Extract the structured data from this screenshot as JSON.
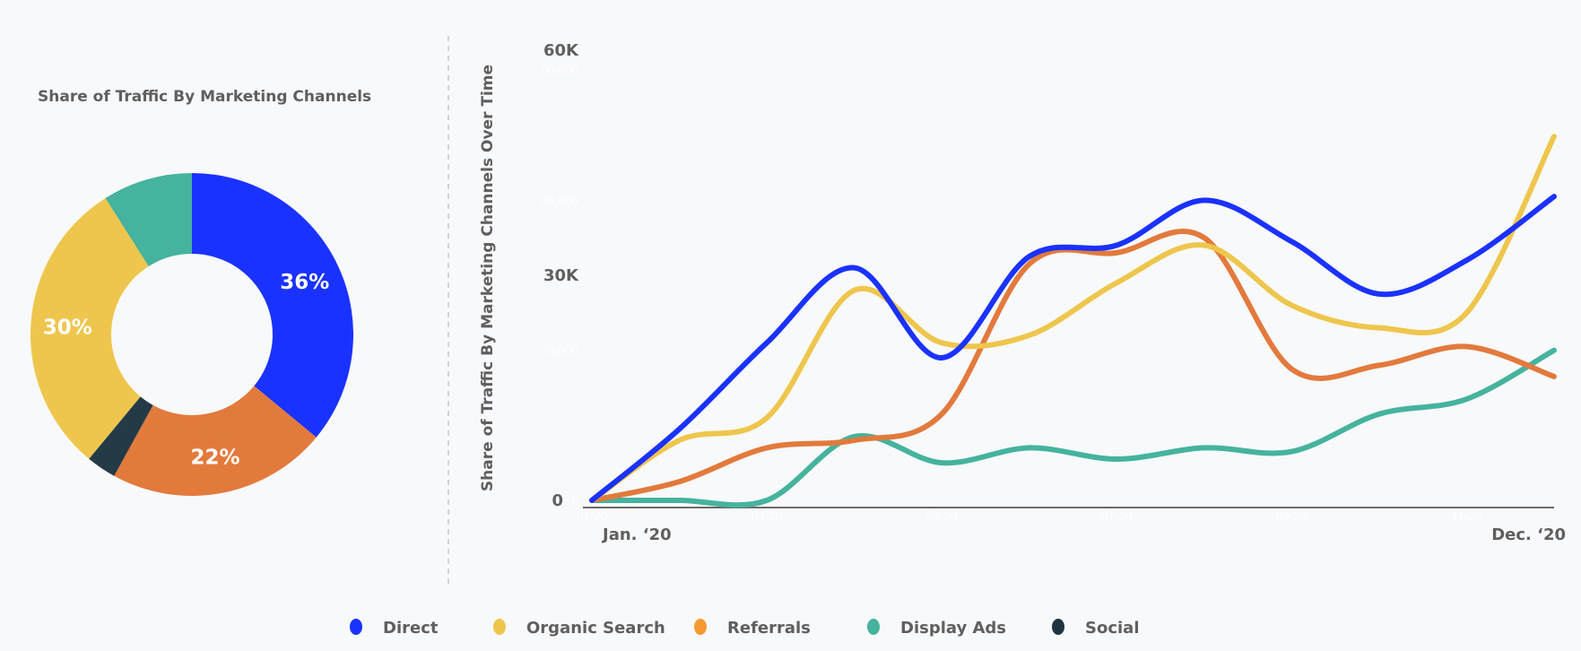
{
  "chart_data": [
    {
      "type": "pie",
      "title": "Share of Traffic By Marketing Channels",
      "donut": true,
      "slices": [
        {
          "name": "Direct",
          "value": 36,
          "label": "36%",
          "color": "#1a32ff"
        },
        {
          "name": "Referrals",
          "value": 22,
          "label": "22%",
          "color": "#e27a3c"
        },
        {
          "name": "Social",
          "value": 3,
          "label": "",
          "color": "#243a47"
        },
        {
          "name": "Organic Search",
          "value": 30,
          "label": "30%",
          "color": "#eec64d"
        },
        {
          "name": "Display Ads",
          "value": 9,
          "label": "",
          "color": "#45b39d"
        }
      ]
    },
    {
      "type": "line",
      "ylabel": "Share of Traffic By Marketing Channels Over Time",
      "ylim": [
        0,
        60000
      ],
      "yticks": [
        {
          "value": 0,
          "label": "0"
        },
        {
          "value": 30000,
          "label": "30K"
        },
        {
          "value": 60000,
          "label": "60K"
        }
      ],
      "faint_yticks": [
        {
          "value": 0,
          "label": "0"
        },
        {
          "value": 20000,
          "label": "20,000"
        },
        {
          "value": 40000,
          "label": "40,000"
        },
        {
          "value": 60000,
          "label": "60,000"
        }
      ],
      "x": [
        "01-20",
        "02-20",
        "03-20",
        "04-20",
        "05-20",
        "06-20",
        "07-20",
        "08-20",
        "09-20",
        "10-20",
        "11-20",
        "12-20"
      ],
      "faint_xticks": [
        "01-20",
        "03-20",
        "05-20",
        "07-20",
        "09-20",
        "11-20"
      ],
      "xlabel_start": "Jan. ‘20",
      "xlabel_end": "Dec. ‘20",
      "grid": false,
      "series": [
        {
          "name": "Direct",
          "color": "#1a32ff",
          "values": [
            0,
            9500,
            21000,
            31000,
            19000,
            32500,
            34000,
            40000,
            34500,
            27500,
            32000,
            40500
          ]
        },
        {
          "name": "Organic Search",
          "color": "#eec64d",
          "values": [
            0,
            8000,
            11000,
            28000,
            21000,
            22000,
            29000,
            34000,
            26000,
            23000,
            25000,
            48500
          ]
        },
        {
          "name": "Referrals",
          "color": "#e27a3c",
          "values": [
            0,
            2500,
            7000,
            8000,
            11500,
            31500,
            33000,
            35000,
            17500,
            18000,
            20500,
            16500
          ]
        },
        {
          "name": "Display Ads",
          "color": "#45b39d",
          "values": [
            0,
            0,
            0,
            8500,
            5000,
            7000,
            5500,
            7000,
            6500,
            11500,
            13500,
            20000
          ]
        }
      ]
    }
  ],
  "legend": [
    {
      "name": "Direct",
      "color": "#1a32ff"
    },
    {
      "name": "Organic Search",
      "color": "#eec64d"
    },
    {
      "name": "Referrals",
      "color": "#f59a30"
    },
    {
      "name": "Display Ads",
      "color": "#45b39d"
    },
    {
      "name": "Social",
      "color": "#1f3340"
    }
  ]
}
